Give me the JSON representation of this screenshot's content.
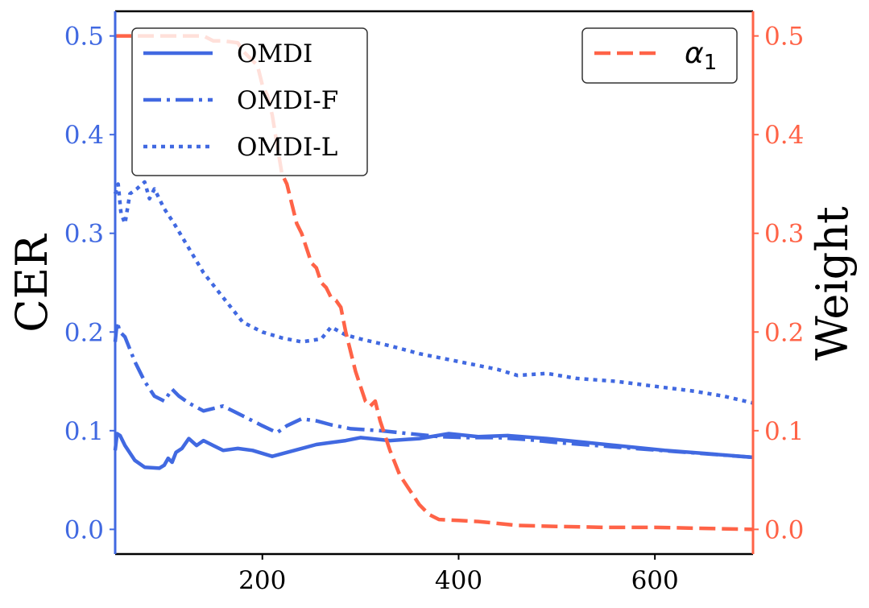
{
  "chart_data": {
    "type": "line",
    "title": "",
    "xlabel": "",
    "ylabel_left": "CER",
    "ylabel_right": "Weight",
    "xlim": [
      50,
      700
    ],
    "ylim_left": [
      -0.025,
      0.525
    ],
    "ylim_right": [
      -0.025,
      0.525
    ],
    "x_ticks": [
      "200",
      "400",
      "600"
    ],
    "y_ticks_left": [
      "0.0",
      "0.1",
      "0.2",
      "0.3",
      "0.4",
      "0.5"
    ],
    "y_ticks_right": [
      "0.0",
      "0.1",
      "0.2",
      "0.3",
      "0.4",
      "0.5"
    ],
    "grid": false,
    "colors": {
      "cer": "#4169e1",
      "weight": "#ff6347"
    },
    "series": [
      {
        "name": "OMDI",
        "axis": "left",
        "style": "solid",
        "x": [
          50,
          52,
          55,
          60,
          70,
          80,
          95,
          100,
          104,
          108,
          112,
          118,
          125,
          133,
          140,
          150,
          160,
          175,
          190,
          210,
          225,
          240,
          255,
          270,
          285,
          300,
          330,
          360,
          390,
          420,
          450,
          490,
          530,
          570,
          610,
          650,
          700
        ],
        "y": [
          0.08,
          0.097,
          0.095,
          0.085,
          0.07,
          0.063,
          0.062,
          0.065,
          0.072,
          0.068,
          0.078,
          0.082,
          0.092,
          0.085,
          0.09,
          0.085,
          0.08,
          0.082,
          0.08,
          0.074,
          0.078,
          0.082,
          0.086,
          0.088,
          0.09,
          0.093,
          0.09,
          0.092,
          0.097,
          0.094,
          0.095,
          0.092,
          0.088,
          0.084,
          0.08,
          0.077,
          0.073
        ]
      },
      {
        "name": "OMDI-F",
        "axis": "left",
        "style": "dashdot",
        "x": [
          50,
          52,
          55,
          60,
          70,
          80,
          90,
          100,
          108,
          115,
          125,
          140,
          160,
          180,
          200,
          215,
          225,
          240,
          255,
          270,
          290,
          320,
          350,
          380,
          410,
          440,
          470,
          500,
          540,
          580,
          620,
          660,
          700
        ],
        "y": [
          0.19,
          0.21,
          0.2,
          0.195,
          0.17,
          0.15,
          0.135,
          0.13,
          0.142,
          0.135,
          0.128,
          0.12,
          0.125,
          0.115,
          0.105,
          0.098,
          0.105,
          0.112,
          0.11,
          0.106,
          0.102,
          0.1,
          0.097,
          0.094,
          0.093,
          0.093,
          0.091,
          0.088,
          0.085,
          0.082,
          0.079,
          0.076,
          0.073
        ]
      },
      {
        "name": "OMDI-L",
        "axis": "left",
        "style": "dotted",
        "x": [
          50,
          53,
          56,
          60,
          65,
          72,
          80,
          85,
          90,
          100,
          110,
          125,
          140,
          160,
          180,
          200,
          220,
          240,
          260,
          270,
          285,
          300,
          330,
          360,
          400,
          440,
          460,
          490,
          520,
          560,
          600,
          640,
          670,
          700
        ],
        "y": [
          0.34,
          0.35,
          0.32,
          0.31,
          0.34,
          0.345,
          0.352,
          0.335,
          0.345,
          0.325,
          0.31,
          0.285,
          0.26,
          0.235,
          0.21,
          0.2,
          0.194,
          0.19,
          0.193,
          0.205,
          0.197,
          0.193,
          0.186,
          0.178,
          0.17,
          0.162,
          0.156,
          0.158,
          0.153,
          0.15,
          0.145,
          0.14,
          0.135,
          0.128
        ]
      },
      {
        "name": "α₁",
        "axis": "right",
        "style": "dashed",
        "x": [
          50,
          100,
          140,
          150,
          160,
          175,
          180,
          190,
          195,
          200,
          205,
          210,
          215,
          220,
          225,
          230,
          235,
          240,
          245,
          250,
          255,
          260,
          265,
          270,
          275,
          280,
          285,
          290,
          295,
          300,
          305,
          310,
          315,
          320,
          330,
          340,
          350,
          360,
          370,
          380,
          400,
          420,
          440,
          460,
          500,
          550,
          600,
          650,
          700
        ],
        "y": [
          0.5,
          0.5,
          0.5,
          0.495,
          0.495,
          0.493,
          0.485,
          0.475,
          0.47,
          0.45,
          0.44,
          0.42,
          0.39,
          0.36,
          0.35,
          0.33,
          0.31,
          0.3,
          0.285,
          0.27,
          0.265,
          0.25,
          0.245,
          0.235,
          0.232,
          0.225,
          0.2,
          0.18,
          0.16,
          0.145,
          0.13,
          0.125,
          0.13,
          0.11,
          0.08,
          0.055,
          0.04,
          0.025,
          0.015,
          0.01,
          0.009,
          0.008,
          0.006,
          0.004,
          0.003,
          0.002,
          0.002,
          0.001,
          0.0
        ]
      }
    ],
    "legend_left": {
      "placement": "top-left",
      "entries": [
        "OMDI",
        "OMDI-F",
        "OMDI-L"
      ]
    },
    "legend_right": {
      "placement": "top-right",
      "entries": [
        "α₁"
      ]
    },
    "legend_alpha_base": "α",
    "legend_alpha_sub": "1"
  }
}
